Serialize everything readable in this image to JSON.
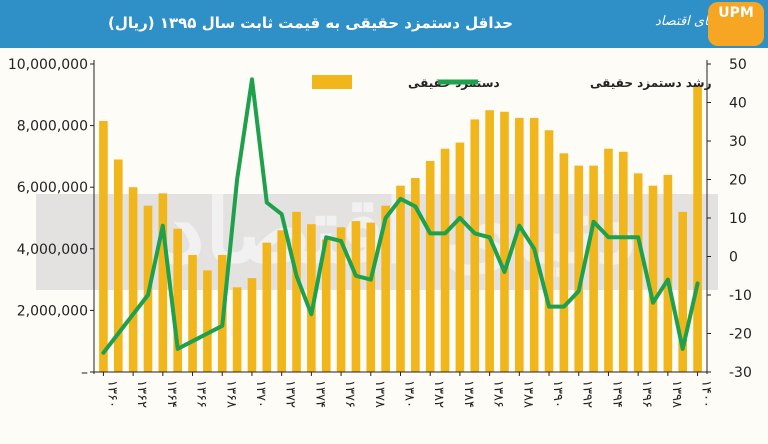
{
  "header": {
    "brand": "دنیای اقتصاد",
    "logo_text": "UPM"
  },
  "watermark": "دنیای اقتصاد",
  "colors": {
    "bar": "#f2b61d",
    "line": "#1ea04c",
    "header": "#2f8fc7",
    "band": "#d9d9d9"
  },
  "chart_data": {
    "type": "bar",
    "title": "حداقل دستمزد حقیقی به قیمت ثابت سال ۱۳۹۵ (ریال)",
    "categories": [
      "۱۳۶۰",
      "۱۳۶۱",
      "۱۳۶۲",
      "۱۳۶۳",
      "۱۳۶۴",
      "۱۳۶۵",
      "۱۳۶۶",
      "۱۳۶۷",
      "۱۳۶۸",
      "۱۳۶۹",
      "۱۳۷۰",
      "۱۳۷۱",
      "۱۳۷۲",
      "۱۳۷۳",
      "۱۳۷۴",
      "۱۳۷۵",
      "۱۳۷۶",
      "۱۳۷۷",
      "۱۳۷۸",
      "۱۳۷۹",
      "۱۳۸۰",
      "۱۳۸۱",
      "۱۳۸۲",
      "۱۳۸۳",
      "۱۳۸۴",
      "۱۳۸۵",
      "۱۳۸۶",
      "۱۳۸۷",
      "۱۳۸۸",
      "۱۳۸۹",
      "۱۳۹۰",
      "۱۳۹۱",
      "۱۳۹۲",
      "۱۳۹۳",
      "۱۳۹۴",
      "۱۳۹۵",
      "۱۳۹۶",
      "۱۳۹۷",
      "۱۳۹۸",
      "۱۳۹۹",
      "۱۴۰۰"
    ],
    "tick_labels": [
      "۱۳۶۰",
      "۱۳۶۲",
      "۱۳۶۴",
      "۱۳۶۶",
      "۱۳۶۸",
      "۱۳۷۰",
      "۱۳۷۲",
      "۱۳۷۴",
      "۱۳۷۶",
      "۱۳۷۸",
      "۱۳۸۰",
      "۱۳۸۲",
      "۱۳۸۴",
      "۱۳۸۶",
      "۱۳۸۸",
      "۱۳۹۰",
      "۱۳۹۲",
      "۱۳۹۴",
      "۱۳۹۶",
      "۱۳۹۸",
      "۱۴۰۰"
    ],
    "series": [
      {
        "name": "دستمزد حقیقی",
        "axis": "left",
        "type": "bar",
        "values": [
          8150000,
          6900000,
          6000000,
          5400000,
          5800000,
          4650000,
          3800000,
          3300000,
          3800000,
          2750000,
          3050000,
          4200000,
          4600000,
          5200000,
          4800000,
          4300000,
          4700000,
          4900000,
          4850000,
          5400000,
          6050000,
          6300000,
          6850000,
          7250000,
          7450000,
          8200000,
          8500000,
          8450000,
          8250000,
          8250000,
          7850000,
          7100000,
          6700000,
          6700000,
          7250000,
          7150000,
          6450000,
          6050000,
          6400000,
          5200000,
          9300000
        ]
      },
      {
        "name": "رشد دستمزد حقیقی",
        "axis": "right",
        "type": "line",
        "values": [
          -25,
          -20,
          -15,
          -10,
          8,
          -24,
          -22,
          -20,
          -18,
          20,
          46,
          14,
          11,
          -5,
          -15,
          5,
          4,
          -5,
          -6,
          10,
          15,
          13,
          6,
          6,
          10,
          6,
          5,
          -4,
          8,
          2,
          -13,
          -13,
          -9,
          9,
          5,
          5,
          5,
          -12,
          -6,
          -24,
          -7
        ]
      }
    ],
    "ylabel_left": "",
    "ylabel_right": "",
    "y_left_ticks": [
      "–",
      "2,000,000",
      "4,000,000",
      "6,000,000",
      "8,000,000",
      "10,000,000"
    ],
    "y_right_ticks": [
      "50",
      "40",
      "30",
      "20",
      "10",
      "0",
      "-10",
      "-20",
      "-30"
    ],
    "y_left_lim": [
      0,
      10000000
    ],
    "y_right_lim": [
      -30,
      50
    ],
    "legend_position": "top"
  }
}
